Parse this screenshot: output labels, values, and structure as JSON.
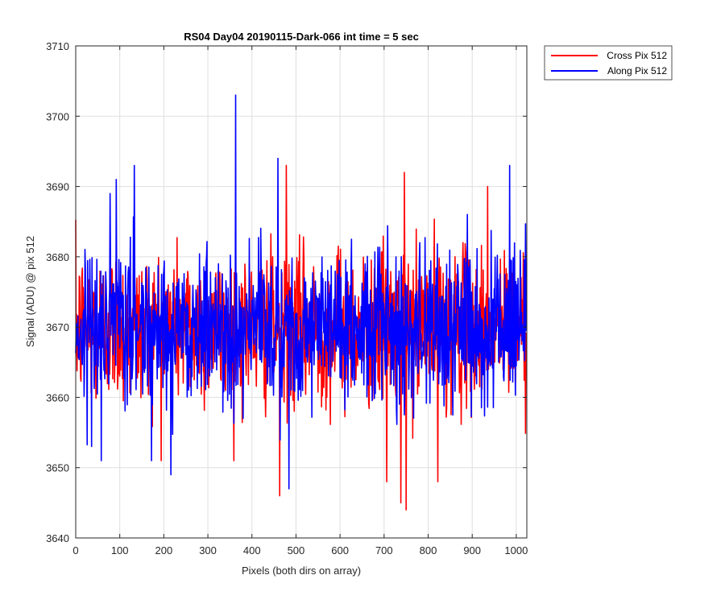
{
  "chart_data": {
    "type": "line",
    "title": "RS04 Day04 20190115-Dark-066 int time = 5 sec",
    "xlabel": "Pixels (both dirs on array)",
    "ylabel": "Signal (ADU) @ pix 512",
    "xlim": [
      0,
      1024
    ],
    "ylim": [
      3640,
      3710
    ],
    "xticks": [
      0,
      100,
      200,
      300,
      400,
      500,
      600,
      700,
      800,
      900,
      1000
    ],
    "yticks": [
      3640,
      3650,
      3660,
      3670,
      3680,
      3690,
      3700,
      3710
    ],
    "grid": true,
    "legend_position": "outside-top-right",
    "series": [
      {
        "name": "Cross Pix 512",
        "color": "#ff0000",
        "mean": 3670,
        "noise_std": 5.5,
        "n_points": 1024,
        "notable_points": [
          {
            "x": 463,
            "y": 3646
          },
          {
            "x": 478,
            "y": 3693
          },
          {
            "x": 706,
            "y": 3648
          },
          {
            "x": 738,
            "y": 3645
          },
          {
            "x": 750,
            "y": 3644
          },
          {
            "x": 746,
            "y": 3692
          },
          {
            "x": 822,
            "y": 3648
          },
          {
            "x": 935,
            "y": 3690
          }
        ]
      },
      {
        "name": "Along Pix 512",
        "color": "#0000ff",
        "mean": 3670,
        "noise_std": 5.5,
        "n_points": 1024,
        "notable_points": [
          {
            "x": 363,
            "y": 3703
          },
          {
            "x": 133,
            "y": 3693
          },
          {
            "x": 92,
            "y": 3691
          },
          {
            "x": 459,
            "y": 3694
          },
          {
            "x": 985,
            "y": 3693
          },
          {
            "x": 216,
            "y": 3649
          },
          {
            "x": 484,
            "y": 3647
          },
          {
            "x": 58,
            "y": 3651
          }
        ]
      }
    ]
  }
}
